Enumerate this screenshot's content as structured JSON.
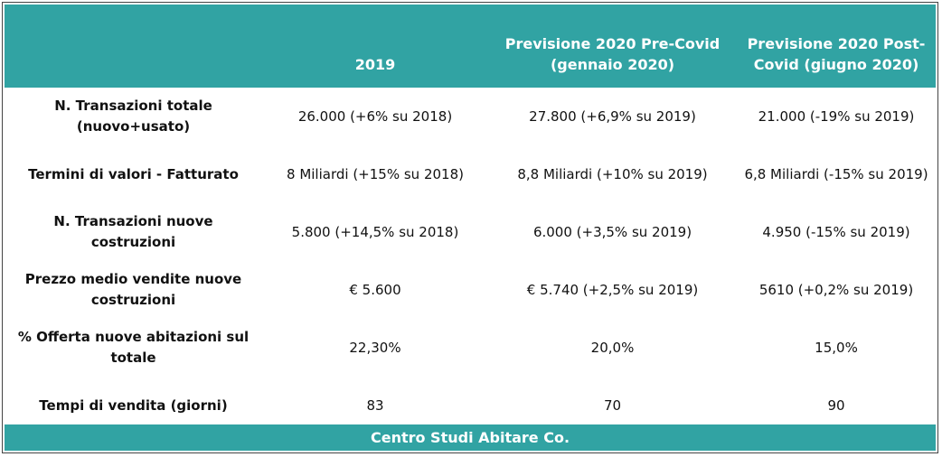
{
  "table": {
    "columns": [
      "2019",
      "Previsione 2020 Pre-Covid (gennaio 2020)",
      "Previsione 2020 Post-Covid (giugno 2020)"
    ],
    "rows": [
      [
        "N. Transazioni totale (nuovo+usato)",
        "26.000 (+6% su 2018)",
        "27.800 (+6,9% su 2019)",
        "21.000 (-19% su 2019)"
      ],
      [
        "Termini di valori - Fatturato",
        "8 Miliardi (+15% su 2018)",
        "8,8 Miliardi (+10% su 2019)",
        "6,8 Miliardi (-15% su 2019)"
      ],
      [
        "N. Transazioni nuove costruzioni",
        "5.800 (+14,5% su 2018)",
        "6.000 (+3,5% su 2019)",
        "4.950 (-15% su 2019)"
      ],
      [
        "Prezzo medio vendite nuove costruzioni",
        "€ 5.600",
        "€ 5.740 (+2,5% su 2019)",
        "5610 (+0,2% su 2019)"
      ],
      [
        "% Offerta nuove abitazioni sul totale",
        "22,30%",
        "20,0%",
        "15,0%"
      ],
      [
        "Tempi di vendita (giorni)",
        "83",
        "70",
        "90"
      ]
    ],
    "footer": "Centro Studi Abitare Co."
  }
}
